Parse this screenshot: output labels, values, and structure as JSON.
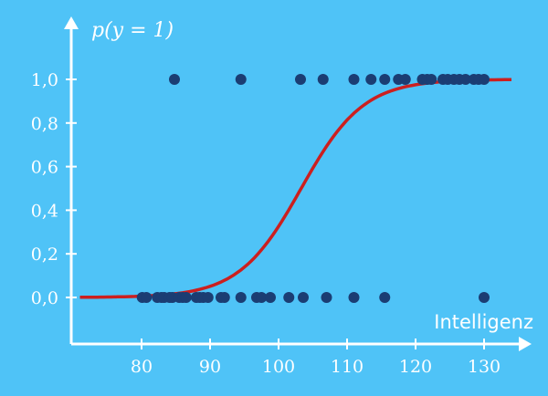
{
  "chart_data": {
    "type": "scatter",
    "title": "",
    "xlabel": "Intelligenz",
    "ylabel": "p(y = 1)",
    "xlim": [
      70,
      137
    ],
    "ylim": [
      0,
      1.15
    ],
    "x_ticks": [
      80,
      90,
      100,
      110,
      120,
      130
    ],
    "x_tick_labels": [
      "80",
      "90",
      "100",
      "110",
      "120",
      "130"
    ],
    "y_ticks": [
      0,
      0.2,
      0.4,
      0.6,
      0.8,
      1.0
    ],
    "y_tick_labels": [
      "0,0",
      "0,2",
      "0,4",
      "0,6",
      "0,8",
      "1,0"
    ],
    "grid": false,
    "series": [
      {
        "type": "scatter",
        "y": 0,
        "x": [
          80.1,
          80.7,
          82.3,
          82.9,
          83.3,
          84.1,
          84.5,
          85.5,
          86,
          86.5,
          88,
          88.5,
          89,
          89.7,
          91.6,
          92.1,
          94.5,
          96.8,
          97.5,
          98.8,
          101.5,
          103.6,
          107,
          111,
          115.5,
          130
        ]
      },
      {
        "type": "scatter",
        "y": 1,
        "x": [
          84.8,
          94.5,
          103.2,
          106.5,
          111,
          113.5,
          115.5,
          117.5,
          118.5,
          121,
          121.7,
          122.3,
          124,
          124.7,
          125.6,
          126.4,
          127.3,
          128.5,
          129.2,
          130
        ]
      },
      {
        "type": "line",
        "function": "logistic",
        "midpoint": 103.3,
        "slope": 0.22,
        "x_range": [
          71,
          134
        ]
      }
    ],
    "colors": {
      "background": "#4fc3f7",
      "points": "#1b3d73",
      "curve": "#cc1f1f",
      "axes": "#ffffff"
    }
  }
}
